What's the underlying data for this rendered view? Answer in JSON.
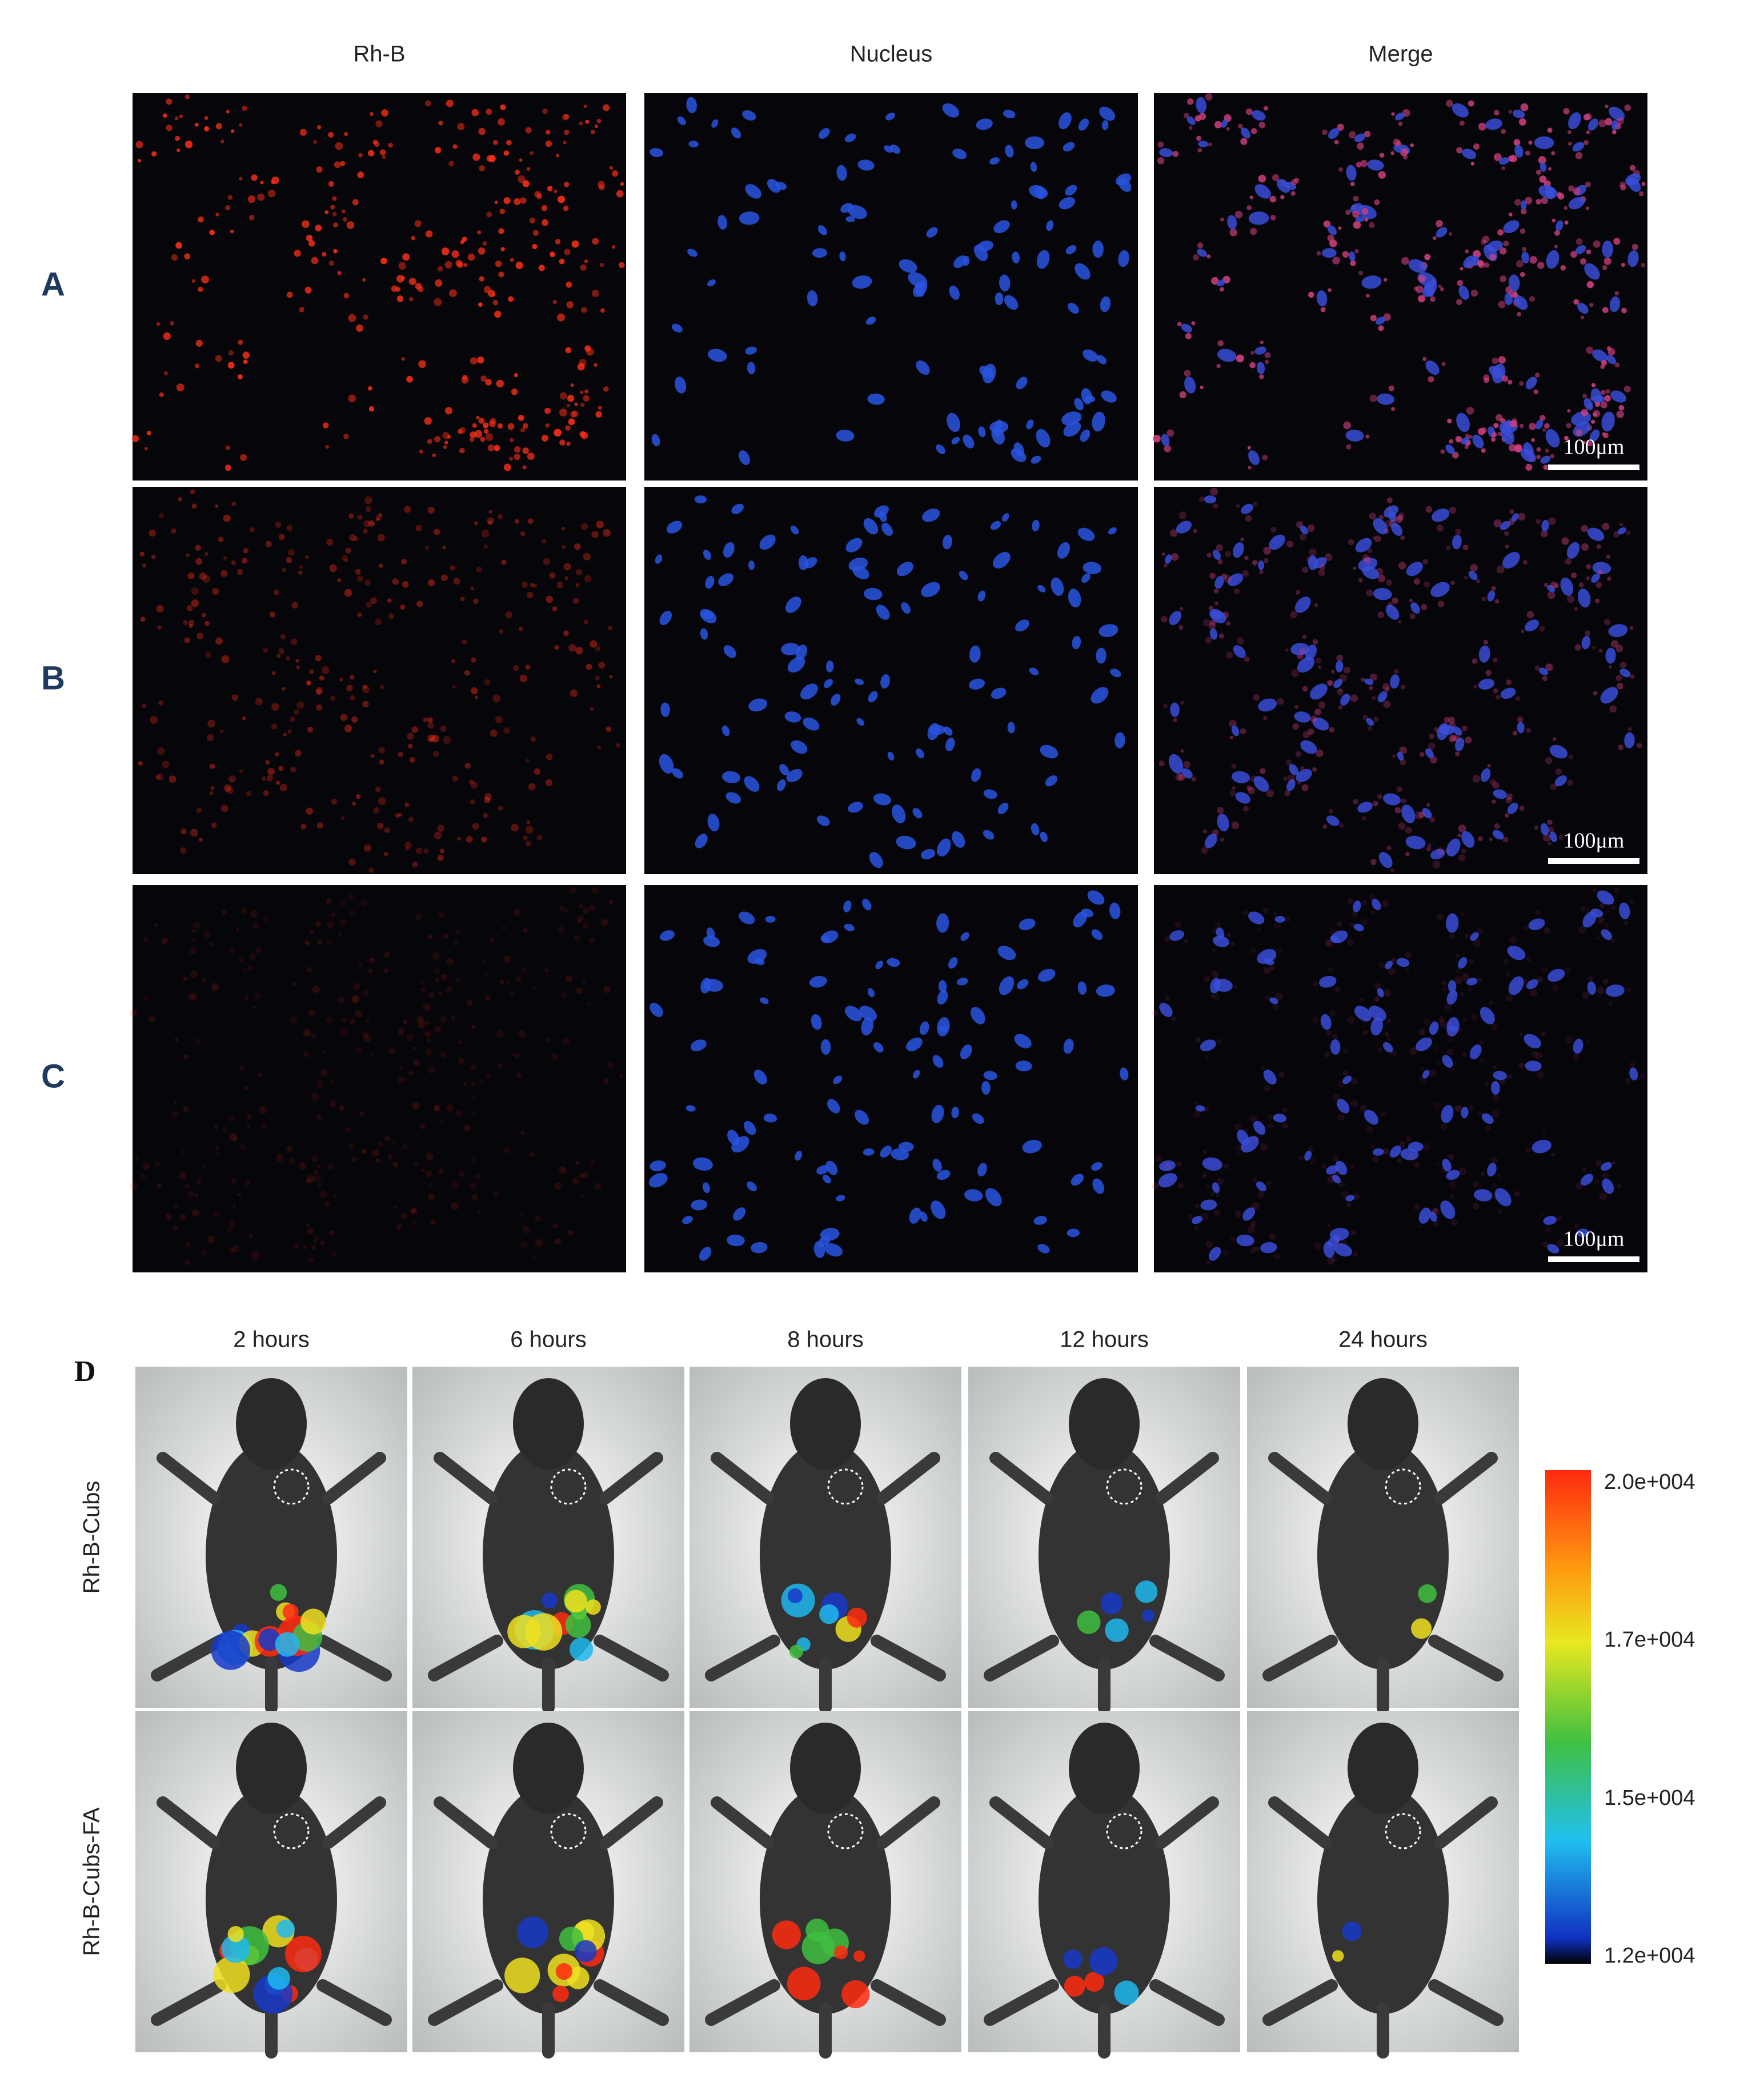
{
  "panel_top": {
    "column_headers": [
      "Rh-B",
      "Nucleus",
      "Merge"
    ],
    "row_labels": [
      "A",
      "B",
      "C"
    ],
    "scale_bar_labels": [
      "100μm",
      "100μm",
      "100μm"
    ]
  },
  "panel_d": {
    "label": "D",
    "time_labels": [
      "2 hours",
      "6 hours",
      "8 hours",
      "12 hours",
      "24 hours"
    ],
    "row_labels": [
      "Rh-B-Cubs",
      "Rh-B-Cubs-FA"
    ],
    "colorbar_labels": [
      "2.0e+004",
      "1.7e+004",
      "1.5e+004",
      "1.2e+004"
    ]
  }
}
